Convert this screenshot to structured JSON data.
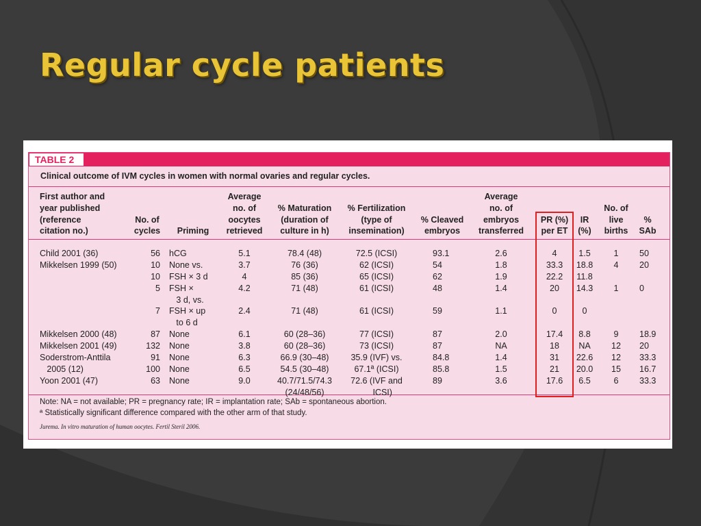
{
  "slide": {
    "title": "Regular cycle patients"
  },
  "table": {
    "label": "TABLE 2",
    "caption": "Clinical outcome of IVM cycles in women with normal ovaries and regular cycles.",
    "highlight_color": "#e02020",
    "accent_color": "#e5205f",
    "columns": [
      {
        "id": "author",
        "header": "First author and\nyear published\n(reference\ncitation no.)"
      },
      {
        "id": "cycles",
        "header": "No. of\ncycles"
      },
      {
        "id": "priming",
        "header": "Priming"
      },
      {
        "id": "oocytes",
        "header": "Average\nno. of\noocytes\nretrieved"
      },
      {
        "id": "mat",
        "header": "% Maturation\n(duration of\nculture in h)"
      },
      {
        "id": "fert",
        "header": "% Fertilization\n(type of\ninsemination)"
      },
      {
        "id": "cleaved",
        "header": "% Cleaved\nembryos"
      },
      {
        "id": "transf",
        "header": "Average\nno. of\nembryos\ntransferred"
      },
      {
        "id": "pr",
        "header": "PR (%)\nper ET"
      },
      {
        "id": "ir",
        "header": "IR\n(%)"
      },
      {
        "id": "births",
        "header": "No. of\nlive\nbirths"
      },
      {
        "id": "sab",
        "header": "%\nSAb"
      }
    ],
    "rows": [
      {
        "author": "Child 2001 (36)",
        "cycles": "56",
        "priming": "hCG",
        "oocytes": "5.1",
        "mat": "78.4 (48)",
        "fert": "72.5 (ICSI)",
        "cleaved": "93.1",
        "transf": "2.6",
        "pr": "4",
        "ir": "1.5",
        "births": "1",
        "sab": "50"
      },
      {
        "author": "Mikkelsen 1999 (50)",
        "cycles": "10",
        "priming": "None vs.",
        "oocytes": "3.7",
        "mat": "76 (36)",
        "fert": "62 (ICSI)",
        "cleaved": "54",
        "transf": "1.8",
        "pr": "33.3",
        "ir": "18.8",
        "births": "4",
        "sab": "20"
      },
      {
        "author": "",
        "cycles": "10",
        "priming": "FSH × 3 d",
        "oocytes": "4",
        "mat": "85 (36)",
        "fert": "65 (ICSI)",
        "cleaved": "62",
        "transf": "1.9",
        "pr": "22.2",
        "ir": "11.8",
        "births": "",
        "sab": ""
      },
      {
        "author": "",
        "cycles": "5",
        "priming": "FSH ×\n   3 d, vs.",
        "oocytes": "4.2",
        "mat": "71 (48)",
        "fert": "61 (ICSI)",
        "cleaved": "48",
        "transf": "1.4",
        "pr": "20",
        "ir": "14.3",
        "births": "1",
        "sab": "0"
      },
      {
        "author": "",
        "cycles": "7",
        "priming": "FSH × up\n   to 6 d",
        "oocytes": "2.4",
        "mat": "71 (48)",
        "fert": "61 (ICSI)",
        "cleaved": "59",
        "transf": "1.1",
        "pr": "0",
        "ir": "0",
        "births": "",
        "sab": ""
      },
      {
        "author": "Mikkelsen 2000 (48)",
        "cycles": "87",
        "priming": "None",
        "oocytes": "6.1",
        "mat": "60 (28–36)",
        "fert": "77 (ICSI)",
        "cleaved": "87",
        "transf": "2.0",
        "pr": "17.4",
        "ir": "8.8",
        "births": "9",
        "sab": "18.9"
      },
      {
        "author": "Mikkelsen 2001 (49)",
        "cycles": "132",
        "priming": "None",
        "oocytes": "3.8",
        "mat": "60 (28–36)",
        "fert": "73 (ICSI)",
        "cleaved": "87",
        "transf": "NA",
        "pr": "18",
        "ir": "NA",
        "births": "12",
        "sab": "20"
      },
      {
        "author": "Soderstrom-Anttila",
        "cycles": "91",
        "priming": "None",
        "oocytes": "6.3",
        "mat": "66.9 (30–48)",
        "fert": "35.9 (IVF) vs.",
        "cleaved": "84.8",
        "transf": "1.4",
        "pr": "31",
        "ir": "22.6",
        "births": "12",
        "sab": "33.3"
      },
      {
        "author": "   2005 (12)",
        "cycles": "100",
        "priming": "None",
        "oocytes": "6.5",
        "mat": "54.5 (30–48)",
        "fert": "67.1ª (ICSI)",
        "cleaved": "85.8",
        "transf": "1.5",
        "pr": "21",
        "ir": "20.0",
        "births": "15",
        "sab": "16.7"
      },
      {
        "author": "Yoon 2001 (47)",
        "cycles": "63",
        "priming": "None",
        "oocytes": "9.0",
        "mat": "40.7/71.5/74.3\n(24/48/56)",
        "fert": "72.6 (IVF and\n     ICSI)",
        "cleaved": "89",
        "transf": "3.6",
        "pr": "17.6",
        "ir": "6.5",
        "births": "6",
        "sab": "33.3"
      }
    ],
    "note": "Note: NA = not available; PR = pregnancy rate; IR = implantation rate; SAb = spontaneous abortion.",
    "footnote": "ª Statistically significant difference compared with the other arm of that study.",
    "source": "Jurema. In vitro maturation of human oocytes. Fertil Steril 2006."
  }
}
